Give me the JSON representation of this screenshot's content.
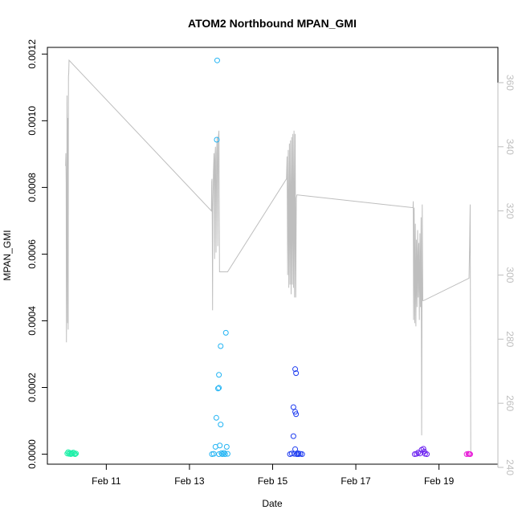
{
  "chart_data": {
    "type": "scatter",
    "title": "ATOM2 Northbound MPAN_GMI",
    "xlabel": "Date",
    "ylabel": "MPAN_GMI",
    "x_range": [
      "2016-02-09T14:00",
      "2016-02-20T10:00"
    ],
    "ylim": [
      -3e-05,
      0.00122
    ],
    "y2lim": [
      241,
      371
    ],
    "x_ticks": [
      {
        "value": "2016-02-11",
        "label": "Feb 11"
      },
      {
        "value": "2016-02-13",
        "label": "Feb 13"
      },
      {
        "value": "2016-02-15",
        "label": "Feb 15"
      },
      {
        "value": "2016-02-17",
        "label": "Feb 17"
      },
      {
        "value": "2016-02-19",
        "label": "Feb 19"
      }
    ],
    "y_ticks": [
      "0.0000",
      "0.0002",
      "0.0004",
      "0.0006",
      "0.0008",
      "0.0010",
      "0.0012"
    ],
    "y2_ticks": [
      "240",
      "260",
      "280",
      "300",
      "320",
      "340",
      "360"
    ],
    "colors": {
      "line": "#bebebe",
      "right_axis": "#bebebe",
      "axis": "#000000"
    },
    "series": [
      {
        "color": "#1ef0a8",
        "points": [
          [
            "2016-02-10T01:30",
            2e-06
          ],
          [
            "2016-02-10T02:00",
            6e-06
          ],
          [
            "2016-02-10T02:30",
            1e-06
          ],
          [
            "2016-02-10T03:00",
            4e-06
          ],
          [
            "2016-02-10T03:30",
            0.0
          ],
          [
            "2016-02-10T04:00",
            3e-06
          ],
          [
            "2016-02-10T04:30",
            2e-06
          ],
          [
            "2016-02-10T05:00",
            5e-06
          ],
          [
            "2016-02-10T05:30",
            1e-06
          ],
          [
            "2016-02-10T06:00",
            0.0
          ],
          [
            "2016-02-10T06:30",
            2e-06
          ]
        ]
      },
      {
        "color": "#22b4f4",
        "points": [
          [
            "2016-02-13T13:00",
            0.0
          ],
          [
            "2016-02-13T14:00",
            1e-06
          ],
          [
            "2016-02-13T15:00",
            2.2e-05
          ],
          [
            "2016-02-13T15:30",
            0.000109
          ],
          [
            "2016-02-13T15:45",
            0.000943
          ],
          [
            "2016-02-13T16:00",
            0.001181
          ],
          [
            "2016-02-13T16:30",
            0.000197
          ],
          [
            "2016-02-13T17:00",
            0.000199
          ],
          [
            "2016-02-13T17:00",
            0.000238
          ],
          [
            "2016-02-13T17:00",
            0.0
          ],
          [
            "2016-02-13T17:30",
            2.6e-05
          ],
          [
            "2016-02-13T18:00",
            0.000324
          ],
          [
            "2016-02-13T18:00",
            8.9e-05
          ],
          [
            "2016-02-13T18:30",
            3e-06
          ],
          [
            "2016-02-13T19:00",
            0.0
          ],
          [
            "2016-02-13T20:00",
            4e-06
          ],
          [
            "2016-02-13T20:30",
            0.0
          ],
          [
            "2016-02-13T21:00",
            0.000364
          ],
          [
            "2016-02-13T21:30",
            2.2e-05
          ],
          [
            "2016-02-13T22:00",
            1e-06
          ]
        ]
      },
      {
        "color": "#1e3cf0",
        "points": [
          [
            "2016-02-15T10:00",
            0.0
          ],
          [
            "2016-02-15T11:00",
            2e-06
          ],
          [
            "2016-02-15T12:00",
            0.000141
          ],
          [
            "2016-02-15T12:00",
            5.4e-05
          ],
          [
            "2016-02-15T12:30",
            1e-06
          ],
          [
            "2016-02-15T13:00",
            1.5e-05
          ],
          [
            "2016-02-15T13:00",
            0.000255
          ],
          [
            "2016-02-15T13:00",
            0.000127
          ],
          [
            "2016-02-15T13:30",
            0.000243
          ],
          [
            "2016-02-15T13:30",
            0.00012
          ],
          [
            "2016-02-15T14:00",
            0.0
          ],
          [
            "2016-02-15T14:30",
            3e-06
          ],
          [
            "2016-02-15T15:00",
            0.0
          ],
          [
            "2016-02-15T16:00",
            1e-06
          ],
          [
            "2016-02-15T17:00",
            0.0
          ]
        ]
      },
      {
        "color": "#6a1ef0",
        "points": [
          [
            "2016-02-18T10:00",
            0.0
          ],
          [
            "2016-02-18T11:00",
            1e-06
          ],
          [
            "2016-02-18T12:00",
            5e-06
          ],
          [
            "2016-02-18T13:00",
            2e-06
          ],
          [
            "2016-02-18T14:00",
            1.3e-05
          ],
          [
            "2016-02-18T15:00",
            1.6e-05
          ],
          [
            "2016-02-18T15:30",
            8e-06
          ],
          [
            "2016-02-18T16:00",
            1e-06
          ],
          [
            "2016-02-18T17:00",
            0.0
          ]
        ]
      },
      {
        "color": "#e81ed8",
        "points": [
          [
            "2016-02-19T16:00",
            0.0
          ],
          [
            "2016-02-19T17:00",
            1e-06
          ],
          [
            "2016-02-19T17:30",
            0.0
          ],
          [
            "2016-02-19T18:00",
            0.0
          ]
        ]
      }
    ],
    "line_series": {
      "axis": "right",
      "color": "#bebebe",
      "points": [
        [
          "2016-02-10T00:30",
          334
        ],
        [
          "2016-02-10T00:40",
          338
        ],
        [
          "2016-02-10T00:50",
          329
        ],
        [
          "2016-02-10T01:00",
          279
        ],
        [
          "2016-02-10T01:10",
          301
        ],
        [
          "2016-02-10T01:20",
          356
        ],
        [
          "2016-02-10T01:30",
          338
        ],
        [
          "2016-02-10T01:40",
          285
        ],
        [
          "2016-02-10T01:50",
          349
        ],
        [
          "2016-02-10T02:00",
          283
        ],
        [
          "2016-02-10T02:10",
          362
        ],
        [
          "2016-02-10T02:20",
          363
        ],
        [
          "2016-02-10T02:30",
          367
        ],
        [
          "2016-02-13T12:40",
          320
        ],
        [
          "2016-02-13T12:50",
          329
        ],
        [
          "2016-02-13T13:00",
          330
        ],
        [
          "2016-02-13T13:10",
          315
        ],
        [
          "2016-02-13T13:20",
          289
        ],
        [
          "2016-02-13T13:30",
          320
        ],
        [
          "2016-02-13T13:50",
          332
        ],
        [
          "2016-02-13T14:10",
          338
        ],
        [
          "2016-02-13T14:30",
          305
        ],
        [
          "2016-02-13T14:40",
          336
        ],
        [
          "2016-02-13T15:00",
          340
        ],
        [
          "2016-02-13T15:20",
          307
        ],
        [
          "2016-02-13T15:40",
          338
        ],
        [
          "2016-02-13T16:00",
          343
        ],
        [
          "2016-02-13T16:20",
          309
        ],
        [
          "2016-02-13T16:40",
          343
        ],
        [
          "2016-02-13T17:00",
          345
        ],
        [
          "2016-02-13T17:20",
          301
        ],
        [
          "2016-02-13T22:00",
          301
        ],
        [
          "2016-02-15T08:00",
          330
        ],
        [
          "2016-02-15T08:20",
          337
        ],
        [
          "2016-02-15T08:40",
          300
        ],
        [
          "2016-02-15T09:00",
          339
        ],
        [
          "2016-02-15T09:20",
          296
        ],
        [
          "2016-02-15T09:40",
          341
        ],
        [
          "2016-02-15T10:00",
          297
        ],
        [
          "2016-02-15T10:20",
          342
        ],
        [
          "2016-02-15T10:40",
          294
        ],
        [
          "2016-02-15T11:00",
          343
        ],
        [
          "2016-02-15T11:20",
          297
        ],
        [
          "2016-02-15T11:40",
          344
        ],
        [
          "2016-02-15T12:00",
          296
        ],
        [
          "2016-02-15T12:20",
          345
        ],
        [
          "2016-02-15T12:40",
          293
        ],
        [
          "2016-02-15T13:00",
          344
        ],
        [
          "2016-02-15T13:20",
          293
        ],
        [
          "2016-02-15T13:40",
          324
        ],
        [
          "2016-02-15T14:00",
          325
        ],
        [
          "2016-02-18T09:00",
          321
        ],
        [
          "2016-02-18T09:10",
          323
        ],
        [
          "2016-02-18T09:20",
          286
        ],
        [
          "2016-02-18T09:40",
          321
        ],
        [
          "2016-02-18T10:00",
          285
        ],
        [
          "2016-02-18T10:20",
          316
        ],
        [
          "2016-02-18T10:40",
          284
        ],
        [
          "2016-02-18T11:00",
          311
        ],
        [
          "2016-02-18T11:20",
          290
        ],
        [
          "2016-02-18T11:40",
          314
        ],
        [
          "2016-02-18T12:00",
          293
        ],
        [
          "2016-02-18T12:20",
          310
        ],
        [
          "2016-02-18T12:40",
          286
        ],
        [
          "2016-02-18T13:00",
          313
        ],
        [
          "2016-02-18T13:20",
          290
        ],
        [
          "2016-02-18T13:40",
          318
        ],
        [
          "2016-02-18T14:00",
          250
        ],
        [
          "2016-02-18T14:20",
          322
        ],
        [
          "2016-02-18T14:40",
          292
        ],
        [
          "2016-02-18T15:00",
          292
        ],
        [
          "2016-02-19T17:20",
          299
        ],
        [
          "2016-02-19T17:40",
          309
        ],
        [
          "2016-02-19T18:00",
          322
        ],
        [
          "2016-02-19T18:20",
          245
        ]
      ]
    }
  }
}
